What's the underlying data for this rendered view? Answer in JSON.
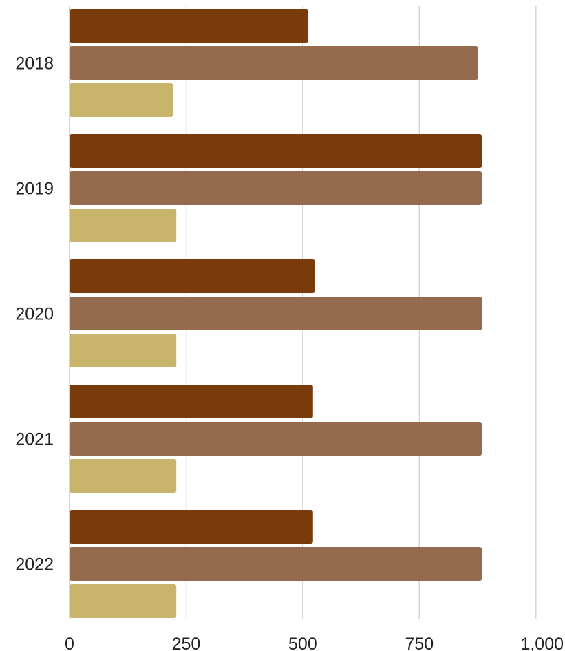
{
  "chart_data": {
    "type": "bar",
    "orientation": "horizontal",
    "categories": [
      "2018",
      "2019",
      "2020",
      "2021",
      "2022"
    ],
    "series": [
      {
        "color": "#7a3b0c",
        "values": [
          512,
          884,
          526,
          522,
          522
        ]
      },
      {
        "color": "#946b4d",
        "values": [
          876,
          884,
          884,
          884,
          884
        ]
      },
      {
        "color": "#c9b46b",
        "values": [
          222,
          229,
          229,
          229,
          229
        ]
      }
    ],
    "xlim": [
      0,
      1000
    ],
    "xticks": [
      0,
      250,
      500,
      750,
      1000
    ],
    "xtick_labels": [
      "0",
      "250",
      "500",
      "750",
      "1,000"
    ],
    "grid": true,
    "legend": "none",
    "title": "",
    "xlabel": "",
    "ylabel": ""
  }
}
